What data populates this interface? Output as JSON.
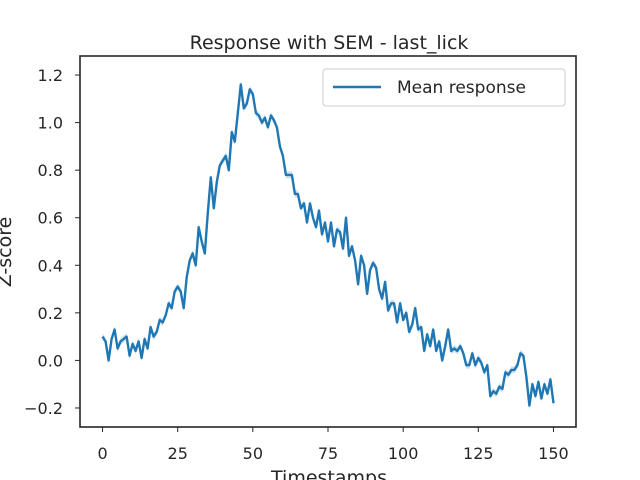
{
  "chart_data": {
    "type": "line",
    "title": "Response with SEM - last_lick",
    "xlabel": "Timestamps",
    "ylabel": "Z-score",
    "xlim": [
      -7.5,
      157.5
    ],
    "ylim": [
      -0.28,
      1.28
    ],
    "x_ticks": [
      0,
      25,
      50,
      75,
      100,
      125,
      150
    ],
    "y_ticks": [
      -0.2,
      0.0,
      0.2,
      0.4,
      0.6,
      0.8,
      1.0,
      1.2
    ],
    "y_tick_labels": [
      "−0.2",
      "0.0",
      "0.2",
      "0.4",
      "0.6",
      "0.8",
      "1.0",
      "1.2"
    ],
    "grid": false,
    "legend_position": "upper-right",
    "colors": {
      "line": "#1f77b4",
      "band": "#a6c8e6",
      "axes": "#262626"
    },
    "series": [
      {
        "name": "Mean response",
        "x_start": 0,
        "x_step": 1,
        "values": [
          0.1,
          0.08,
          0.0,
          0.09,
          0.13,
          0.05,
          0.08,
          0.09,
          0.1,
          0.02,
          0.07,
          0.04,
          0.08,
          0.01,
          0.09,
          0.05,
          0.14,
          0.1,
          0.12,
          0.17,
          0.16,
          0.19,
          0.24,
          0.22,
          0.29,
          0.31,
          0.29,
          0.22,
          0.35,
          0.42,
          0.45,
          0.4,
          0.56,
          0.5,
          0.45,
          0.62,
          0.77,
          0.64,
          0.75,
          0.82,
          0.84,
          0.86,
          0.8,
          0.96,
          0.92,
          1.04,
          1.16,
          1.06,
          1.08,
          1.14,
          1.12,
          1.04,
          1.03,
          1.0,
          1.02,
          0.98,
          1.03,
          1.01,
          0.98,
          0.9,
          0.86,
          0.78,
          0.78,
          0.78,
          0.7,
          0.7,
          0.64,
          0.66,
          0.58,
          0.66,
          0.6,
          0.56,
          0.63,
          0.53,
          0.58,
          0.5,
          0.58,
          0.48,
          0.55,
          0.54,
          0.47,
          0.6,
          0.44,
          0.48,
          0.42,
          0.32,
          0.44,
          0.4,
          0.28,
          0.38,
          0.41,
          0.39,
          0.3,
          0.26,
          0.33,
          0.21,
          0.24,
          0.24,
          0.16,
          0.24,
          0.17,
          0.2,
          0.12,
          0.15,
          0.22,
          0.13,
          0.14,
          0.04,
          0.11,
          0.06,
          0.13,
          0.04,
          0.08,
          0.0,
          0.06,
          0.13,
          0.04,
          0.05,
          0.04,
          0.06,
          0.03,
          -0.02,
          -0.02,
          0.03,
          -0.02,
          0.01,
          -0.01,
          -0.05,
          -0.02,
          -0.15,
          -0.13,
          -0.14,
          -0.11,
          -0.12,
          -0.05,
          -0.06,
          -0.04,
          -0.04,
          -0.02,
          0.03,
          0.02,
          -0.07,
          -0.19,
          -0.1,
          -0.15,
          -0.09,
          -0.16,
          -0.1,
          -0.14,
          -0.08,
          -0.18
        ]
      }
    ]
  }
}
